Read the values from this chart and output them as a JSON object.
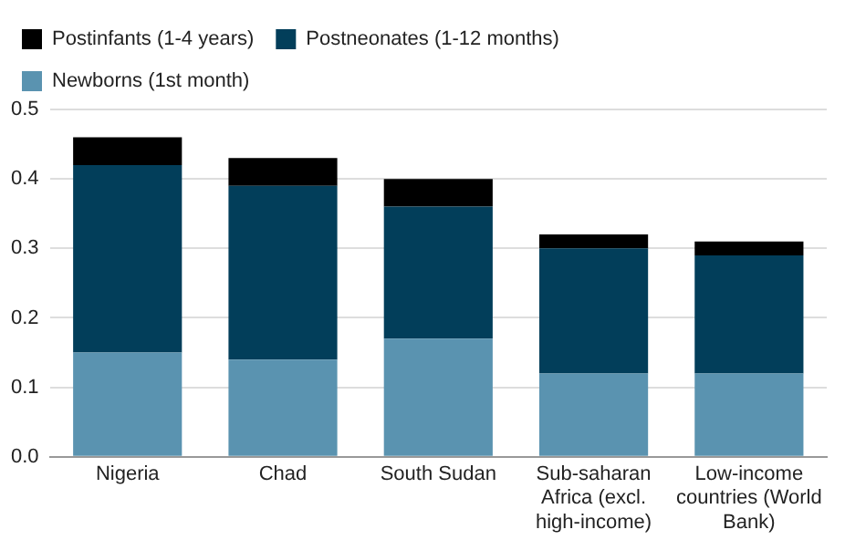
{
  "chart_data": {
    "type": "bar",
    "stacked": true,
    "categories": [
      "Nigeria",
      "Chad",
      "South Sudan",
      "Sub-saharan Africa (excl. high-income)",
      "Low-income countries (World Bank)"
    ],
    "series": [
      {
        "name": "Newborns (1st month)",
        "color": "#5a93b0",
        "values": [
          0.15,
          0.14,
          0.17,
          0.12,
          0.12
        ]
      },
      {
        "name": "Postneonates (1-12 months)",
        "color": "#023e5a",
        "values": [
          0.27,
          0.25,
          0.19,
          0.18,
          0.17
        ]
      },
      {
        "name": "Postinfants (1-4 years)",
        "color": "#000000",
        "values": [
          0.04,
          0.04,
          0.04,
          0.02,
          0.02
        ]
      }
    ],
    "ylim": [
      0,
      0.5
    ],
    "yticks": [
      {
        "value": 0,
        "label": "0.0"
      },
      0.1,
      0.2,
      0.3,
      0.4,
      0.5
    ],
    "grid": "y",
    "legend": "top left"
  }
}
